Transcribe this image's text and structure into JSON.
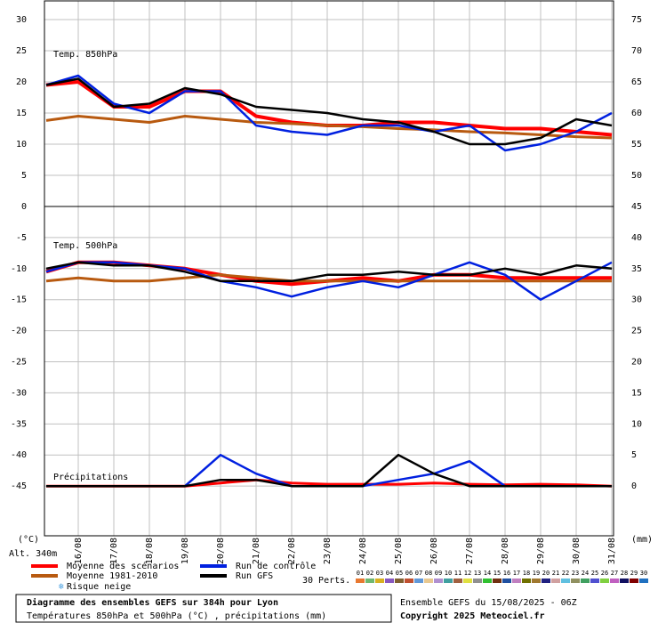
{
  "header": {
    "title": "Diagramme des ensembles GEFS sur 384h pour Lyon",
    "subtitle": "Températures 850hPa et 500hPa (°C) , précipitations (mm)",
    "altitude": "Alt. 340m",
    "left_unit": "(°C)",
    "right_unit": "(mm)",
    "run": "Ensemble GEFS du 15/08/2025 - 06Z",
    "copyright": "Copyright 2025 Meteociel.fr",
    "snow": "Risque neige",
    "perts_label": "30 Perts."
  },
  "perturbations": [
    {
      "name": "01",
      "color": "#e87830"
    },
    {
      "name": "02",
      "color": "#70b870"
    },
    {
      "name": "03",
      "color": "#d8b020"
    },
    {
      "name": "04",
      "color": "#8858c0"
    },
    {
      "name": "05",
      "color": "#806030"
    },
    {
      "name": "06",
      "color": "#c05030"
    },
    {
      "name": "07",
      "color": "#6098d8"
    },
    {
      "name": "08",
      "color": "#e8c890"
    },
    {
      "name": "09",
      "color": "#b090d0"
    },
    {
      "name": "10",
      "color": "#40a0a0"
    },
    {
      "name": "11",
      "color": "#a06040"
    },
    {
      "name": "12",
      "color": "#e0e040"
    },
    {
      "name": "13",
      "color": "#909090"
    },
    {
      "name": "14",
      "color": "#30c030"
    },
    {
      "name": "15",
      "color": "#703010"
    },
    {
      "name": "16",
      "color": "#2050a0"
    },
    {
      "name": "17",
      "color": "#c080c0"
    },
    {
      "name": "18",
      "color": "#707000"
    },
    {
      "name": "19",
      "color": "#a07830"
    },
    {
      "name": "20",
      "color": "#202080"
    },
    {
      "name": "21",
      "color": "#d0a0a0"
    },
    {
      "name": "22",
      "color": "#60c0e0"
    },
    {
      "name": "23",
      "color": "#909060"
    },
    {
      "name": "24",
      "color": "#40a060"
    },
    {
      "name": "25",
      "color": "#5050d0"
    },
    {
      "name": "26",
      "color": "#80d040"
    },
    {
      "name": "27",
      "color": "#c060c0"
    },
    {
      "name": "28",
      "color": "#101060"
    },
    {
      "name": "29",
      "color": "#800000"
    },
    {
      "name": "30",
      "color": "#2070c0"
    }
  ],
  "chart_data": [
    {
      "type": "line",
      "label": "Temp. 850hPa",
      "ylim": [
        0,
        33
      ],
      "yticks": [
        0,
        5,
        10,
        15,
        20,
        25,
        30
      ],
      "y2lim": [
        45,
        78
      ],
      "y2ticks": [
        50,
        55,
        60,
        65,
        70,
        75
      ],
      "grid": true,
      "x": [
        0.1,
        1,
        2,
        3,
        4,
        5,
        6,
        7,
        8,
        9,
        10,
        11,
        12,
        13,
        14,
        15,
        16
      ],
      "series": [
        {
          "name": "Moyenne des scénarios",
          "color": "#ff0000",
          "values": [
            19.5,
            20,
            16,
            16,
            18.5,
            18.5,
            14.5,
            13.5,
            13,
            13,
            13.5,
            13.5,
            13,
            12.5,
            12.5,
            12,
            11.5
          ]
        },
        {
          "name": "Moyenne 1981-2010",
          "color": "#b85a10",
          "values": [
            13.8,
            14.5,
            14,
            13.5,
            14.5,
            14,
            13.5,
            13.3,
            13,
            12.8,
            12.5,
            12.3,
            12,
            11.8,
            11.5,
            11.2,
            11
          ]
        },
        {
          "name": "Run de contrôle",
          "color": "#0020e0",
          "values": [
            19.5,
            21,
            16.5,
            15,
            18.5,
            18.5,
            13,
            12,
            11.5,
            13,
            13,
            12,
            13,
            9,
            10,
            12,
            15
          ]
        },
        {
          "name": "Run GFS",
          "color": "#000000",
          "values": [
            19.5,
            20.5,
            16,
            16.5,
            19,
            18,
            16,
            15.5,
            15,
            14,
            13.5,
            12,
            10,
            10,
            11,
            14,
            13
          ]
        }
      ]
    },
    {
      "type": "line",
      "label": "Temp. 500hPa",
      "precip_label": "Précipitations",
      "ylim": [
        -53,
        0
      ],
      "yticks": [
        -45,
        -40,
        -35,
        -30,
        -25,
        -20,
        -15,
        -10,
        -5
      ],
      "y2lim": [
        -8,
        45
      ],
      "y2ticks": [
        0,
        5,
        10,
        15,
        20,
        25,
        30,
        35,
        40,
        45
      ],
      "grid": true,
      "xlim": [
        0.05,
        16.05
      ],
      "xticks": [
        {
          "value": 1,
          "label": "16/08"
        },
        {
          "value": 2,
          "label": "17/08"
        },
        {
          "value": 3,
          "label": "18/08"
        },
        {
          "value": 4,
          "label": "19/08"
        },
        {
          "value": 5,
          "label": "20/08"
        },
        {
          "value": 6,
          "label": "21/08"
        },
        {
          "value": 7,
          "label": "22/08"
        },
        {
          "value": 8,
          "label": "23/08"
        },
        {
          "value": 9,
          "label": "24/08"
        },
        {
          "value": 10,
          "label": "25/08"
        },
        {
          "value": 11,
          "label": "26/08"
        },
        {
          "value": 12,
          "label": "27/08"
        },
        {
          "value": 13,
          "label": "28/08"
        },
        {
          "value": 14,
          "label": "29/08"
        },
        {
          "value": 15,
          "label": "30/08"
        },
        {
          "value": 16,
          "label": "31/08"
        }
      ],
      "x": [
        0.1,
        1,
        2,
        3,
        4,
        5,
        6,
        7,
        8,
        9,
        10,
        11,
        12,
        13,
        14,
        15,
        16
      ],
      "series": [
        {
          "color": "#ff0000",
          "values": [
            -10.5,
            -9,
            -9,
            -9.5,
            -10,
            -11,
            -12,
            -12.5,
            -12,
            -11.5,
            -12,
            -11,
            -11,
            -11.5,
            -11.5,
            -11.5,
            -11.5
          ]
        },
        {
          "color": "#b85a10",
          "values": [
            -12,
            -11.5,
            -12,
            -12,
            -11.5,
            -11,
            -11.5,
            -12,
            -12,
            -12,
            -12,
            -12,
            -12,
            -12,
            -12,
            -12,
            -12
          ]
        },
        {
          "color": "#0020e0",
          "values": [
            -10.5,
            -9,
            -9,
            -9.5,
            -10,
            -12,
            -13,
            -14.5,
            -13,
            -12,
            -13,
            -11,
            -9,
            -11,
            -15,
            -12,
            -9
          ]
        },
        {
          "color": "#000000",
          "values": [
            -10,
            -9,
            -9.5,
            -9.5,
            -10.5,
            -12,
            -12,
            -12,
            -11,
            -11,
            -10.5,
            -11,
            -11,
            -10,
            -11,
            -9.5,
            -10
          ]
        }
      ],
      "precip_series": [
        {
          "color": "#ff0000",
          "axis": "y2",
          "values": [
            0,
            0,
            0,
            0,
            0,
            0.5,
            1,
            0.5,
            0.3,
            0.3,
            0.3,
            0.5,
            0.3,
            0.2,
            0.3,
            0.2,
            0
          ]
        },
        {
          "color": "#0020e0",
          "axis": "y2",
          "values": [
            0,
            0,
            0,
            0,
            0,
            5,
            2,
            0,
            0,
            0,
            1,
            2,
            4,
            0,
            0,
            0,
            0
          ]
        },
        {
          "color": "#000000",
          "axis": "y2",
          "values": [
            0,
            0,
            0,
            0,
            0,
            1,
            1,
            0,
            0,
            0,
            5,
            2,
            0,
            0,
            0,
            0,
            0
          ]
        }
      ]
    }
  ]
}
